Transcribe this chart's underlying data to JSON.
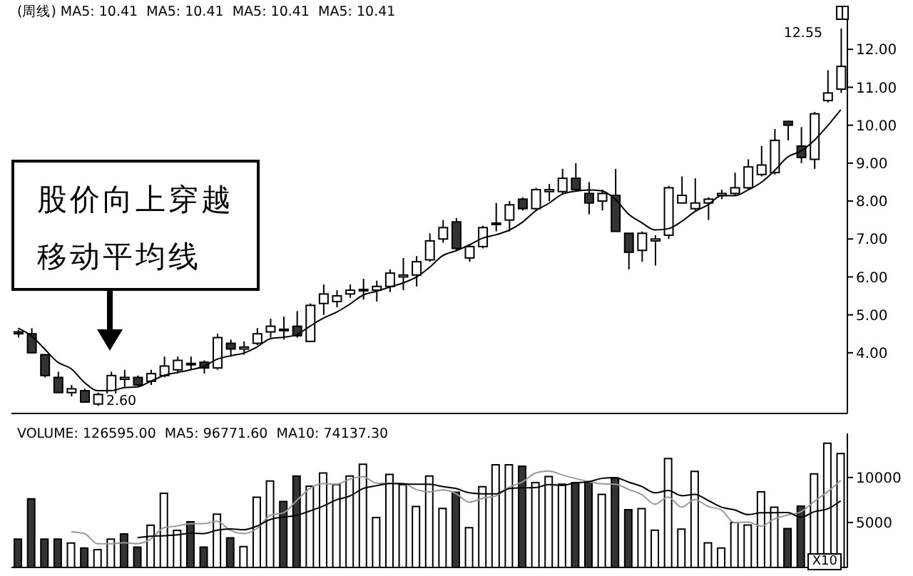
{
  "chart_data": [
    {
      "type": "candlestick",
      "title": "(周线) MA5: 10.41  MA5: 10.41  MA5: 10.41  MA5: 10.41",
      "categories": [
        null,
        null,
        null,
        null,
        null,
        null,
        null,
        null,
        null,
        null,
        null,
        null,
        null,
        null,
        null,
        null,
        null,
        null,
        null,
        null,
        null,
        null,
        null,
        null,
        null,
        null,
        null,
        null,
        null,
        null,
        null,
        null,
        null,
        null,
        null,
        null,
        null,
        null,
        null,
        null,
        null,
        null,
        null,
        null,
        null,
        null,
        null,
        null,
        null,
        null,
        null,
        null,
        null,
        null,
        null,
        null,
        null,
        null,
        null,
        null,
        null,
        null,
        null
      ],
      "ohlc": [
        [
          4.55,
          4.6,
          4.4,
          4.5
        ],
        [
          4.5,
          4.65,
          4.0,
          4.0
        ],
        [
          3.95,
          3.95,
          3.35,
          3.4
        ],
        [
          3.35,
          3.5,
          2.95,
          2.95
        ],
        [
          2.95,
          3.15,
          2.85,
          3.05
        ],
        [
          3.0,
          3.05,
          2.7,
          2.7
        ],
        [
          2.65,
          2.95,
          2.6,
          2.9
        ],
        [
          2.9,
          3.5,
          2.9,
          3.4
        ],
        [
          3.3,
          3.55,
          3.1,
          3.35
        ],
        [
          3.35,
          3.4,
          3.1,
          3.15
        ],
        [
          3.25,
          3.55,
          3.15,
          3.45
        ],
        [
          3.4,
          3.9,
          3.35,
          3.65
        ],
        [
          3.55,
          3.9,
          3.45,
          3.8
        ],
        [
          3.7,
          3.9,
          3.55,
          3.72
        ],
        [
          3.75,
          3.8,
          3.45,
          3.6
        ],
        [
          3.6,
          4.5,
          3.55,
          4.4
        ],
        [
          4.25,
          4.35,
          3.9,
          4.1
        ],
        [
          4.1,
          4.3,
          3.95,
          4.15
        ],
        [
          4.25,
          4.65,
          4.2,
          4.5
        ],
        [
          4.55,
          4.9,
          4.4,
          4.7
        ],
        [
          4.6,
          4.95,
          4.35,
          4.62
        ],
        [
          4.7,
          5.1,
          4.4,
          4.45
        ],
        [
          4.3,
          5.3,
          4.3,
          5.25
        ],
        [
          5.3,
          5.8,
          5.0,
          5.55
        ],
        [
          5.35,
          5.65,
          5.2,
          5.5
        ],
        [
          5.55,
          5.8,
          5.45,
          5.65
        ],
        [
          5.65,
          5.95,
          5.4,
          5.67
        ],
        [
          5.65,
          5.9,
          5.35,
          5.75
        ],
        [
          5.75,
          6.2,
          5.6,
          6.1
        ],
        [
          6.0,
          6.5,
          5.65,
          6.05
        ],
        [
          6.05,
          6.55,
          5.75,
          6.4
        ],
        [
          6.45,
          7.15,
          6.4,
          6.95
        ],
        [
          7.0,
          7.5,
          6.9,
          7.3
        ],
        [
          7.45,
          7.55,
          6.7,
          6.75
        ],
        [
          6.5,
          6.85,
          6.4,
          6.8
        ],
        [
          6.8,
          7.35,
          6.75,
          7.3
        ],
        [
          7.4,
          7.95,
          7.2,
          7.42
        ],
        [
          7.5,
          8.0,
          7.2,
          7.9
        ],
        [
          8.05,
          8.1,
          7.75,
          7.8
        ],
        [
          7.8,
          8.35,
          7.75,
          8.3
        ],
        [
          8.25,
          8.45,
          8.0,
          8.3
        ],
        [
          8.25,
          8.85,
          8.2,
          8.6
        ],
        [
          8.6,
          9.0,
          8.25,
          8.3
        ],
        [
          8.2,
          8.5,
          7.65,
          7.95
        ],
        [
          8.0,
          8.3,
          7.75,
          8.2
        ],
        [
          8.15,
          8.85,
          7.2,
          7.2
        ],
        [
          7.15,
          7.15,
          6.2,
          6.65
        ],
        [
          6.7,
          7.2,
          6.4,
          7.15
        ],
        [
          6.95,
          7.1,
          6.3,
          7.0
        ],
        [
          7.1,
          8.4,
          7.0,
          8.35
        ],
        [
          7.95,
          8.65,
          7.95,
          8.15
        ],
        [
          7.8,
          8.6,
          7.75,
          7.95
        ],
        [
          7.95,
          8.1,
          7.5,
          8.05
        ],
        [
          8.15,
          8.3,
          8.05,
          8.2
        ],
        [
          8.2,
          8.75,
          8.15,
          8.35
        ],
        [
          8.35,
          9.1,
          8.3,
          8.9
        ],
        [
          8.7,
          9.45,
          8.65,
          8.95
        ],
        [
          8.75,
          9.9,
          8.7,
          9.6
        ],
        [
          10.1,
          10.12,
          9.6,
          10.0
        ],
        [
          9.45,
          9.95,
          9.0,
          9.15
        ],
        [
          9.1,
          10.35,
          8.85,
          10.3
        ],
        [
          10.65,
          11.45,
          10.6,
          10.85
        ],
        [
          10.95,
          12.55,
          10.85,
          11.55
        ]
      ],
      "series": [
        {
          "type": "line",
          "color": "#000000",
          "values": [
            4.65,
            4.45,
            4.1,
            3.75,
            3.58,
            3.22,
            3.0,
            3.0,
            3.08,
            3.1,
            3.25,
            3.4,
            3.48,
            3.55,
            3.64,
            3.83,
            3.92,
            3.99,
            4.15,
            4.37,
            4.41,
            4.48,
            4.7,
            4.91,
            5.07,
            5.28,
            5.52,
            5.62,
            5.73,
            5.84,
            5.99,
            6.25,
            6.56,
            6.69,
            6.84,
            7.02,
            7.11,
            7.23,
            7.44,
            7.74,
            7.94,
            8.18,
            8.26,
            8.29,
            8.27,
            8.05,
            7.66,
            7.43,
            7.24,
            7.27,
            7.46,
            7.72,
            7.9,
            8.14,
            8.14,
            8.29,
            8.49,
            8.8,
            9.16,
            9.32,
            9.6,
            9.98,
            10.41
          ]
        }
      ],
      "ylim": [
        2.4,
        13.0
      ],
      "yticks": [
        {
          "value": 4,
          "label": "4.00"
        },
        {
          "value": 5,
          "label": "5.00"
        },
        {
          "value": 6,
          "label": "6.00"
        },
        {
          "value": 7,
          "label": "7.00"
        },
        {
          "value": 8,
          "label": "8.00"
        },
        {
          "value": 9,
          "label": "9.00"
        },
        {
          "value": 10,
          "label": "10.00"
        },
        {
          "value": 11,
          "label": "11.00"
        },
        {
          "value": 12,
          "label": "12.00"
        }
      ],
      "tick_labels": "y",
      "annotations": [
        "股价向上穿越移动平均线",
        "2.60",
        "12.55"
      ]
    },
    {
      "type": "bar",
      "title": "VOLUME: 126595.00  MA5: 96771.60  MA10: 74137.30",
      "categories": [
        null,
        null,
        null,
        null,
        null,
        null,
        null,
        null,
        null,
        null,
        null,
        null,
        null,
        null,
        null,
        null,
        null,
        null,
        null,
        null,
        null,
        null,
        null,
        null,
        null,
        null,
        null,
        null,
        null,
        null,
        null,
        null,
        null,
        null,
        null,
        null,
        null,
        null,
        null,
        null,
        null,
        null,
        null,
        null,
        null,
        null,
        null,
        null,
        null,
        null,
        null,
        null,
        null,
        null,
        null,
        null,
        null,
        null,
        null,
        null,
        null,
        null,
        null
      ],
      "series": [
        {
          "values": [
            3160,
            7630,
            3160,
            3160,
            2710,
            2150,
            1980,
            3160,
            3730,
            2260,
            4690,
            8250,
            4120,
            5080,
            2260,
            5930,
            3280,
            2320,
            7800,
            9600,
            7340,
            10170,
            9040,
            10510,
            9210,
            10170,
            11470,
            5540,
            10340,
            9210,
            6780,
            10170,
            6550,
            8360,
            4410,
            8980,
            11420,
            11420,
            11250,
            9430,
            10110,
            9260,
            9430,
            9550,
            8120,
            9940,
            6420,
            6530,
            4150,
            12100,
            4260,
            10680,
            2730,
            2160,
            5000,
            4720,
            8410,
            6700,
            4320,
            6820,
            10400,
            13810,
            12660
          ],
          "colors": [
            "#333333",
            "#333333",
            "#333333",
            "#333333",
            "#ffffff",
            "#333333",
            "#ffffff",
            "#ffffff",
            "#333333",
            "#333333",
            "#ffffff",
            "#ffffff",
            "#ffffff",
            "#333333",
            "#333333",
            "#ffffff",
            "#333333",
            "#ffffff",
            "#ffffff",
            "#ffffff",
            "#333333",
            "#333333",
            "#ffffff",
            "#ffffff",
            "#ffffff",
            "#ffffff",
            "#ffffff",
            "#ffffff",
            "#ffffff",
            "#ffffff",
            "#ffffff",
            "#ffffff",
            "#ffffff",
            "#333333",
            "#ffffff",
            "#ffffff",
            "#ffffff",
            "#ffffff",
            "#333333",
            "#ffffff",
            "#ffffff",
            "#ffffff",
            "#333333",
            "#333333",
            "#ffffff",
            "#333333",
            "#333333",
            "#ffffff",
            "#ffffff",
            "#ffffff",
            "#ffffff",
            "#ffffff",
            "#ffffff",
            "#ffffff",
            "#ffffff",
            "#ffffff",
            "#ffffff",
            "#ffffff",
            "#333333",
            "#333333",
            "#ffffff",
            "#ffffff",
            "#ffffff"
          ]
        },
        {
          "type": "line",
          "color": "#999999",
          "values": [
            null,
            null,
            null,
            null,
            3964,
            3762,
            2632,
            2632,
            2746,
            2656,
            3164,
            4418,
            4610,
            4880,
            4880,
            5128,
            4134,
            3774,
            4318,
            5786,
            6068,
            7446,
            8790,
            9332,
            9254,
            9820,
            10080,
            9380,
            9346,
            9346,
            8668,
            8408,
            8610,
            8214,
            7254,
            7694,
            7944,
            8918,
            9496,
            10500,
            10726,
            10294,
            9896,
            9556,
            9294,
            9260,
            8692,
            8112,
            7032,
            7828,
            6692,
            7544,
            6784,
            6386,
            4966,
            5058,
            4604,
            5398,
            5830,
            6194,
            7330,
            8410,
            9677
          ]
        },
        {
          "type": "line",
          "color": "#000000",
          "values": [
            null,
            null,
            null,
            null,
            null,
            null,
            null,
            null,
            null,
            3310,
            3463,
            3525,
            3621,
            3813,
            3768,
            4146,
            4276,
            4192,
            4599,
            5333,
            5598,
            5790,
            6282,
            6825,
            7520,
            7944,
            8763,
            9085,
            9339,
            9300,
            9244,
            9244,
            8995,
            8780,
            8300,
            8181,
            8176,
            8764,
            8855,
            8877,
            9210,
            9119,
            9407,
            9526,
            9897,
            9993,
            9493,
            9004,
            8294,
            8561,
            7976,
            8118,
            7448,
            6709,
            6397,
            5875,
            6074,
            6091,
            6108,
            5580,
            6194,
            6507,
            7414
          ]
        }
      ],
      "ylim": [
        0,
        14900
      ],
      "yticks": [
        5000,
        10000
      ],
      "tick_labels": "y",
      "annotations": [
        "X10"
      ]
    }
  ]
}
